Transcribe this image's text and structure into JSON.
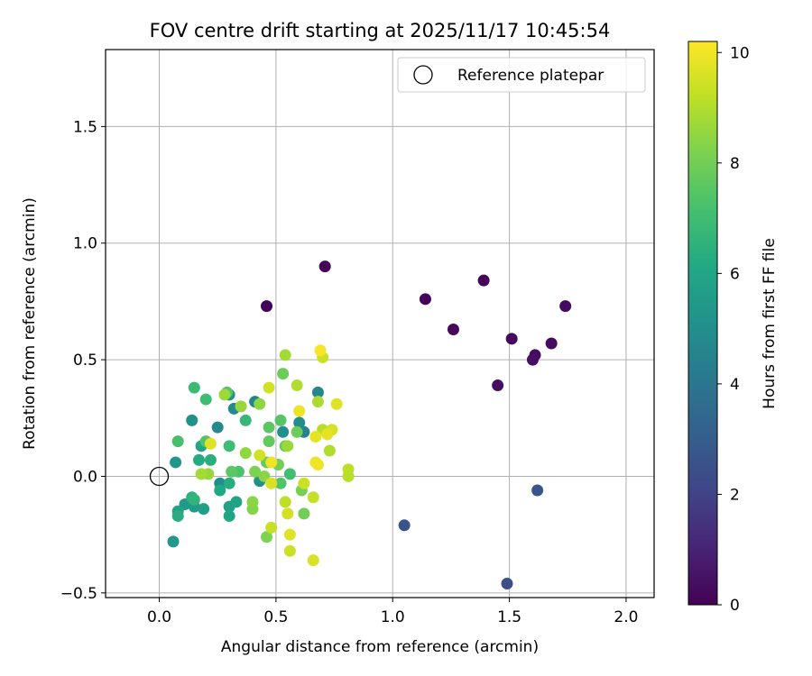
{
  "chart_data": {
    "type": "scatter",
    "title": "FOV centre drift starting at 2025/11/17 10:45:54",
    "xlabel": "Angular distance from reference (arcmin)",
    "ylabel": "Rotation from reference (arcmin)",
    "xlim": [
      -0.23,
      2.12
    ],
    "ylim": [
      -0.52,
      1.83
    ],
    "xticks": [
      0.0,
      0.5,
      1.0,
      1.5,
      2.0
    ],
    "xtick_labels": [
      "0.0",
      "0.5",
      "1.0",
      "1.5",
      "2.0"
    ],
    "yticks": [
      -0.5,
      0.0,
      0.5,
      1.0,
      1.5
    ],
    "ytick_labels": [
      "−0.5",
      "0.0",
      "0.5",
      "1.0",
      "1.5"
    ],
    "grid": true,
    "legend": {
      "location": "top-right",
      "entries": [
        "Reference platepar"
      ]
    },
    "reference_point": {
      "x": 0.0,
      "y": 0.0,
      "label": "Reference platepar"
    },
    "colorbar": {
      "label": "Hours from first FF file",
      "range": [
        0,
        10.2
      ],
      "ticks": [
        0,
        2,
        4,
        6,
        8,
        10
      ],
      "tick_labels": [
        "0",
        "2",
        "4",
        "6",
        "8",
        "10"
      ],
      "colormap": "viridis"
    },
    "points": [
      [
        0.71,
        0.9,
        0.05
      ],
      [
        0.46,
        0.73,
        0.1
      ],
      [
        1.14,
        0.76,
        0.1
      ],
      [
        1.39,
        0.84,
        0.15
      ],
      [
        1.26,
        0.63,
        0.2
      ],
      [
        1.74,
        0.73,
        0.3
      ],
      [
        1.51,
        0.59,
        0.25
      ],
      [
        1.68,
        0.57,
        0.3
      ],
      [
        1.61,
        0.52,
        0.35
      ],
      [
        1.6,
        0.5,
        0.4
      ],
      [
        1.45,
        0.39,
        0.4
      ],
      [
        1.62,
        -0.06,
        2.7
      ],
      [
        1.05,
        -0.21,
        2.6
      ],
      [
        1.49,
        -0.46,
        2.4
      ],
      [
        0.68,
        0.36,
        4.7
      ],
      [
        0.41,
        0.32,
        4.6
      ],
      [
        0.32,
        0.29,
        4.8
      ],
      [
        0.6,
        0.23,
        4.9
      ],
      [
        0.62,
        0.19,
        4.5
      ],
      [
        0.25,
        0.21,
        4.8
      ],
      [
        0.53,
        0.19,
        5.0
      ],
      [
        0.14,
        0.24,
        5.1
      ],
      [
        0.07,
        0.06,
        5.3
      ],
      [
        0.06,
        -0.28,
        5.4
      ],
      [
        0.3,
        0.35,
        5.2
      ],
      [
        0.43,
        -0.02,
        5.0
      ],
      [
        0.26,
        -0.03,
        4.9
      ],
      [
        0.11,
        -0.12,
        5.5
      ],
      [
        0.15,
        -0.13,
        5.6
      ],
      [
        0.19,
        -0.14,
        5.7
      ],
      [
        0.3,
        -0.13,
        5.8
      ],
      [
        0.33,
        -0.11,
        5.9
      ],
      [
        0.08,
        -0.15,
        5.9
      ],
      [
        0.26,
        -0.06,
        6.1
      ],
      [
        0.18,
        0.13,
        6.0
      ],
      [
        0.17,
        0.07,
        6.2
      ],
      [
        0.22,
        0.07,
        6.4
      ],
      [
        0.14,
        -0.09,
        6.5
      ],
      [
        0.15,
        -0.1,
        6.6
      ],
      [
        0.08,
        -0.17,
        6.3
      ],
      [
        0.3,
        -0.17,
        6.0
      ],
      [
        0.3,
        -0.03,
        6.3
      ],
      [
        0.2,
        0.33,
        7.0
      ],
      [
        0.15,
        0.38,
        6.9
      ],
      [
        0.08,
        0.15,
        7.2
      ],
      [
        0.2,
        0.15,
        7.4
      ],
      [
        0.3,
        0.13,
        7.0
      ],
      [
        0.37,
        0.24,
        6.8
      ],
      [
        0.29,
        0.36,
        7.5
      ],
      [
        0.34,
        0.02,
        7.3
      ],
      [
        0.31,
        0.02,
        7.6
      ],
      [
        0.47,
        0.21,
        7.6
      ],
      [
        0.52,
        0.24,
        7.5
      ],
      [
        0.56,
        0.01,
        7.1
      ],
      [
        0.52,
        -0.03,
        7.4
      ],
      [
        0.47,
        0.15,
        7.7
      ],
      [
        0.46,
        0.06,
        7.8
      ],
      [
        0.53,
        0.44,
        7.9
      ],
      [
        0.54,
        0.13,
        7.8
      ],
      [
        0.51,
        0.05,
        8.0
      ],
      [
        0.59,
        0.19,
        7.9
      ],
      [
        0.61,
        -0.06,
        8.1
      ],
      [
        0.62,
        -0.16,
        8.0
      ],
      [
        0.46,
        -0.26,
        8.2
      ],
      [
        0.4,
        -0.14,
        8.3
      ],
      [
        0.4,
        -0.11,
        8.4
      ],
      [
        0.41,
        0.02,
        8.2
      ],
      [
        0.45,
        0.0,
        8.4
      ],
      [
        0.37,
        0.1,
        8.5
      ],
      [
        0.35,
        0.3,
        8.6
      ],
      [
        0.43,
        0.31,
        8.5
      ],
      [
        0.28,
        0.35,
        8.7
      ],
      [
        0.21,
        0.01,
        8.6
      ],
      [
        0.18,
        0.01,
        8.8
      ],
      [
        0.55,
        0.13,
        8.7
      ],
      [
        0.54,
        0.52,
        8.8
      ],
      [
        0.59,
        0.39,
        9.0
      ],
      [
        0.68,
        0.32,
        8.9
      ],
      [
        0.7,
        0.2,
        9.1
      ],
      [
        0.73,
        0.11,
        9.0
      ],
      [
        0.81,
        0.03,
        9.2
      ],
      [
        0.81,
        0.0,
        9.1
      ],
      [
        0.66,
        -0.09,
        9.3
      ],
      [
        0.62,
        -0.03,
        9.4
      ],
      [
        0.54,
        -0.11,
        9.2
      ],
      [
        0.48,
        -0.22,
        9.3
      ],
      [
        0.55,
        -0.16,
        9.5
      ],
      [
        0.56,
        -0.32,
        9.4
      ],
      [
        0.66,
        -0.36,
        9.6
      ],
      [
        0.56,
        -0.25,
        9.7
      ],
      [
        0.48,
        -0.03,
        9.6
      ],
      [
        0.43,
        0.09,
        9.5
      ],
      [
        0.47,
        0.38,
        9.5
      ],
      [
        0.7,
        0.51,
        9.4
      ],
      [
        0.74,
        0.2,
        9.6
      ],
      [
        0.76,
        0.31,
        9.7
      ],
      [
        0.67,
        0.17,
        9.8
      ],
      [
        0.6,
        0.28,
        9.9
      ],
      [
        0.72,
        0.18,
        9.8
      ],
      [
        0.67,
        0.06,
        9.9
      ],
      [
        0.68,
        0.05,
        10.0
      ],
      [
        0.48,
        0.06,
        10.0
      ],
      [
        0.69,
        0.54,
        10.1
      ],
      [
        0.22,
        0.14,
        9.7
      ]
    ]
  }
}
